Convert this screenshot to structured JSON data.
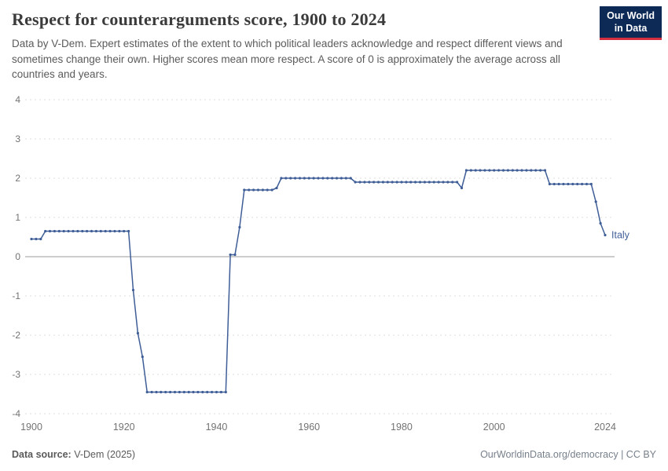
{
  "header": {
    "title": "Respect for counterarguments score, 1900 to 2024",
    "subtitle": "Data by V-Dem. Expert estimates of the extent to which political leaders acknowledge and respect different views and sometimes change their own. Higher scores mean more respect. A score of 0 is approximately the average across all countries and years.",
    "logo": {
      "line1": "Our World",
      "line2": "in Data",
      "bg_color": "#0d2a57",
      "accent_color": "#d32f3e"
    }
  },
  "footer": {
    "source_label": "Data source:",
    "source_value": " V-Dem (2025)",
    "right_text": "OurWorldinData.org/democracy | CC BY"
  },
  "chart_data": {
    "type": "line",
    "title": "Respect for counterarguments score, 1900 to 2024",
    "xlabel": "",
    "ylabel": "",
    "xlim": [
      1900,
      2024
    ],
    "ylim": [
      -4,
      4
    ],
    "xticks": [
      1900,
      1920,
      1940,
      1960,
      1980,
      2000,
      2024
    ],
    "yticks": [
      4,
      3,
      2,
      1,
      0,
      -1,
      -2,
      -3,
      -4
    ],
    "grid": "dashed horizontal gridlines, solid gray zero line",
    "legend_position": "end-of-line label",
    "line_color": "#3f5e97",
    "series": [
      {
        "name": "Italy",
        "start_year": 1900,
        "end_year": 2024,
        "x_step": 1,
        "values": [
          0.45,
          0.45,
          0.45,
          0.65,
          0.65,
          0.65,
          0.65,
          0.65,
          0.65,
          0.65,
          0.65,
          0.65,
          0.65,
          0.65,
          0.65,
          0.65,
          0.65,
          0.65,
          0.65,
          0.65,
          0.65,
          0.65,
          -0.85,
          -1.95,
          -2.55,
          -3.45,
          -3.45,
          -3.45,
          -3.45,
          -3.45,
          -3.45,
          -3.45,
          -3.45,
          -3.45,
          -3.45,
          -3.45,
          -3.45,
          -3.45,
          -3.45,
          -3.45,
          -3.45,
          -3.45,
          -3.45,
          0.05,
          0.05,
          0.75,
          1.7,
          1.7,
          1.7,
          1.7,
          1.7,
          1.7,
          1.7,
          1.75,
          2.0,
          2.0,
          2.0,
          2.0,
          2.0,
          2.0,
          2.0,
          2.0,
          2.0,
          2.0,
          2.0,
          2.0,
          2.0,
          2.0,
          2.0,
          2.0,
          1.9,
          1.9,
          1.9,
          1.9,
          1.9,
          1.9,
          1.9,
          1.9,
          1.9,
          1.9,
          1.9,
          1.9,
          1.9,
          1.9,
          1.9,
          1.9,
          1.9,
          1.9,
          1.9,
          1.9,
          1.9,
          1.9,
          1.9,
          1.75,
          2.2,
          2.2,
          2.2,
          2.2,
          2.2,
          2.2,
          2.2,
          2.2,
          2.2,
          2.2,
          2.2,
          2.2,
          2.2,
          2.2,
          2.2,
          2.2,
          2.2,
          2.2,
          1.85,
          1.85,
          1.85,
          1.85,
          1.85,
          1.85,
          1.85,
          1.85,
          1.85,
          1.85,
          1.4,
          0.85,
          0.55
        ]
      }
    ]
  }
}
